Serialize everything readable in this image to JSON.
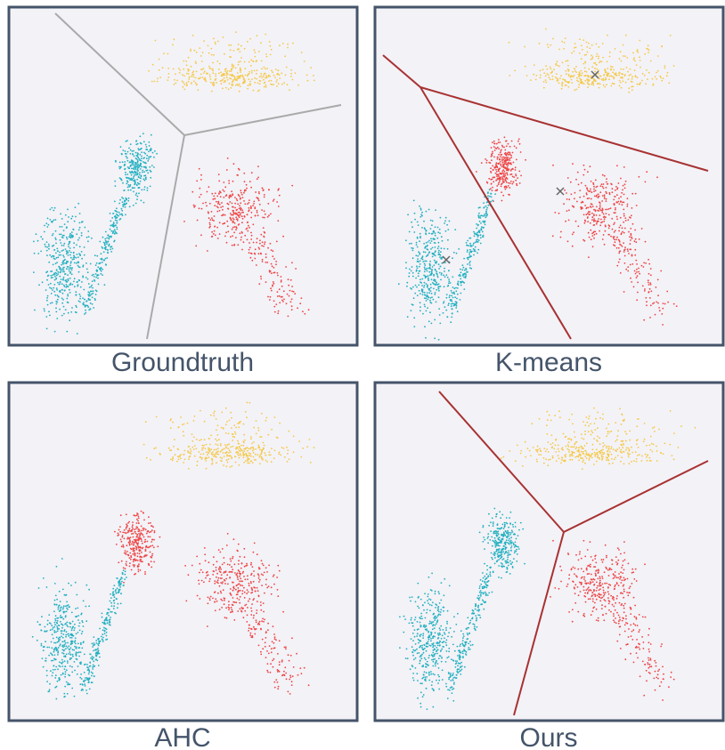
{
  "panels": [
    {
      "caption": "Groundtruth"
    },
    {
      "caption": "K-means"
    },
    {
      "caption": "AHC"
    },
    {
      "caption": "Ours"
    }
  ]
}
